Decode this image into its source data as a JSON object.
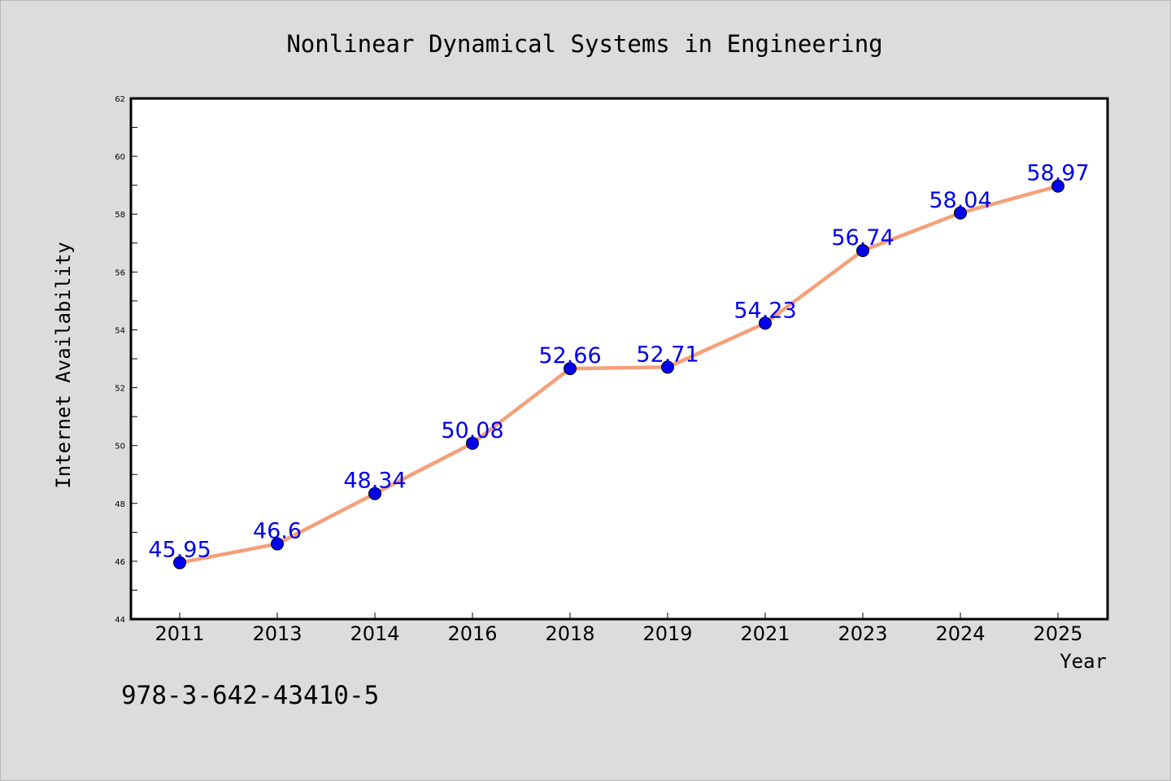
{
  "chart_data": {
    "type": "line",
    "title": "Nonlinear Dynamical Systems in Engineering",
    "xlabel": "Year",
    "ylabel": "Internet Availability",
    "categories": [
      "2011",
      "2013",
      "2014",
      "2016",
      "2018",
      "2019",
      "2021",
      "2023",
      "2024",
      "2025"
    ],
    "series": [
      {
        "values": [
          45.95,
          46.6,
          48.34,
          50.08,
          52.66,
          52.71,
          54.23,
          56.74,
          58.04,
          58.97
        ],
        "data_labels": [
          "45.95",
          "46.6",
          "48.34",
          "50.08",
          "52.66",
          "52.71",
          "54.23",
          "56.74",
          "58.04",
          "58.97"
        ]
      }
    ],
    "ylim": [
      44,
      62
    ],
    "yticks": [
      44,
      46,
      48,
      50,
      52,
      54,
      56,
      58,
      60,
      62
    ],
    "ytick_labels": [
      "44",
      "46",
      "48",
      "50",
      "52",
      "54",
      "56",
      "58",
      "60",
      "62"
    ],
    "grid": false,
    "legend": "none",
    "colors": {
      "line": "#f4a07a",
      "marker": "#0000ee",
      "label": "#0000ee"
    }
  },
  "footer": {
    "isbn": "978-3-642-43410-5"
  }
}
